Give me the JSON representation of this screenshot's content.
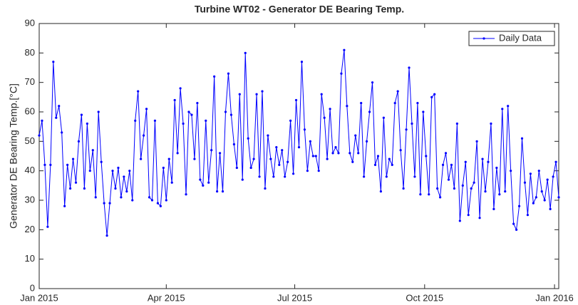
{
  "chart_data": {
    "type": "line",
    "title": "Turbine WT02 - Generator DE Bearing Temp.",
    "ylabel": "Generator DE Bearing Temp.[°C]",
    "x": [
      0,
      2,
      4,
      6,
      8,
      10,
      12,
      14,
      16,
      18,
      20,
      22,
      24,
      26,
      28,
      30,
      32,
      34,
      36,
      38,
      40,
      42,
      44,
      46,
      48,
      50,
      52,
      54,
      56,
      58,
      60,
      62,
      64,
      66,
      68,
      70,
      72,
      74,
      76,
      78,
      80,
      82,
      84,
      86,
      88,
      90,
      92,
      94,
      96,
      98,
      100,
      102,
      104,
      106,
      108,
      110,
      112,
      114,
      116,
      118,
      120,
      122,
      124,
      126,
      128,
      130,
      132,
      134,
      136,
      138,
      140,
      142,
      144,
      146,
      148,
      150,
      152,
      154,
      156,
      158,
      160,
      162,
      164,
      166,
      168,
      170,
      172,
      174,
      176,
      178,
      180,
      182,
      184,
      186,
      188,
      190,
      192,
      194,
      196,
      198,
      200,
      202,
      204,
      206,
      208,
      210,
      212,
      214,
      216,
      218,
      220,
      222,
      224,
      226,
      228,
      230,
      232,
      234,
      236,
      238,
      240,
      242,
      244,
      246,
      248,
      250,
      252,
      254,
      256,
      258,
      260,
      262,
      264,
      266,
      268,
      270,
      272,
      274,
      276,
      278,
      280,
      282,
      284,
      286,
      288,
      290,
      292,
      294,
      296,
      298,
      300,
      302,
      304,
      306,
      308,
      310,
      312,
      314,
      316,
      318,
      320,
      322,
      324,
      326,
      328,
      330,
      332,
      334,
      336,
      338,
      340,
      342,
      344,
      346,
      348,
      350,
      352,
      354,
      356,
      358,
      360,
      362,
      364,
      366,
      368
    ],
    "series": [
      {
        "name": "Daily Data",
        "color": "#0000ff",
        "values": [
          52,
          57,
          42,
          21,
          42,
          77,
          58,
          62,
          53,
          28,
          42,
          34,
          44,
          36,
          50,
          59,
          34,
          56,
          40,
          47,
          31,
          60,
          43,
          29,
          18,
          29,
          40,
          34,
          41,
          31,
          38,
          33,
          40,
          30,
          57,
          67,
          44,
          52,
          61,
          31,
          30,
          57,
          29,
          28,
          41,
          30,
          44,
          36,
          64,
          46,
          68,
          56,
          32,
          60,
          59,
          44,
          63,
          37,
          35,
          57,
          36,
          47,
          72,
          33,
          46,
          33,
          60,
          73,
          59,
          49,
          41,
          66,
          37,
          80,
          51,
          41,
          44,
          66,
          38,
          67,
          34,
          52,
          44,
          38,
          48,
          42,
          47,
          38,
          43,
          57,
          39,
          64,
          48,
          77,
          54,
          40,
          50,
          45,
          45,
          40,
          66,
          58,
          44,
          61,
          46,
          48,
          46,
          73,
          81,
          62,
          46,
          43,
          52,
          46,
          63,
          38,
          50,
          60,
          70,
          42,
          45,
          33,
          58,
          38,
          44,
          42,
          63,
          67,
          47,
          34,
          54,
          75,
          56,
          38,
          63,
          32,
          60,
          45,
          32,
          65,
          66,
          34,
          31,
          42,
          46,
          37,
          42,
          34,
          56,
          23,
          35,
          43,
          25,
          34,
          36,
          50,
          24,
          44,
          33,
          43,
          56,
          27,
          41,
          32,
          61,
          33,
          62,
          40,
          22,
          20,
          28,
          51,
          36,
          25,
          39,
          29,
          31,
          40,
          33,
          30,
          37,
          27,
          38,
          43,
          31
        ]
      }
    ],
    "xlim": [
      0,
      368
    ],
    "xticks": [
      {
        "value": 0,
        "label": "Jan 2015"
      },
      {
        "value": 90,
        "label": "Apr 2015"
      },
      {
        "value": 181,
        "label": "Jul 2015"
      },
      {
        "value": 273,
        "label": "Oct 2015"
      },
      {
        "value": 365,
        "label": "Jan 2016"
      }
    ],
    "ylim": [
      0,
      90
    ],
    "yticks": [
      0,
      10,
      20,
      30,
      40,
      50,
      60,
      70,
      80,
      90
    ],
    "legend": "top-right"
  }
}
